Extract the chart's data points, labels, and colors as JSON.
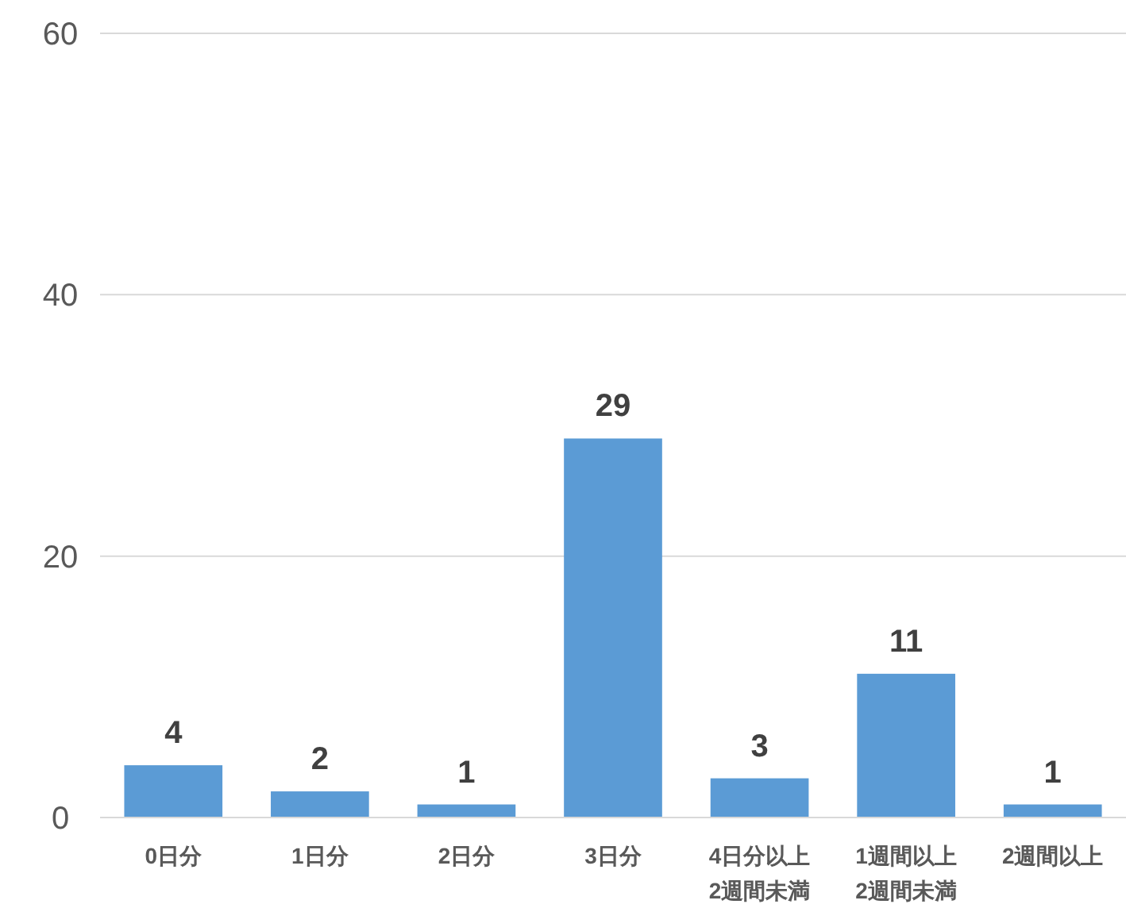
{
  "chart_data": {
    "type": "bar",
    "categories": [
      "0日分",
      "1日分",
      "2日分",
      "3日分",
      "4日分以上\n2週間未満",
      "1週間以上\n2週間未満",
      "2週間以上"
    ],
    "values": [
      4,
      2,
      1,
      29,
      3,
      11,
      1
    ],
    "color": "#5b9bd5",
    "ylim": [
      0,
      60
    ],
    "yticks": [
      0,
      20,
      40,
      60
    ],
    "grid": "y",
    "data_labels": true
  }
}
